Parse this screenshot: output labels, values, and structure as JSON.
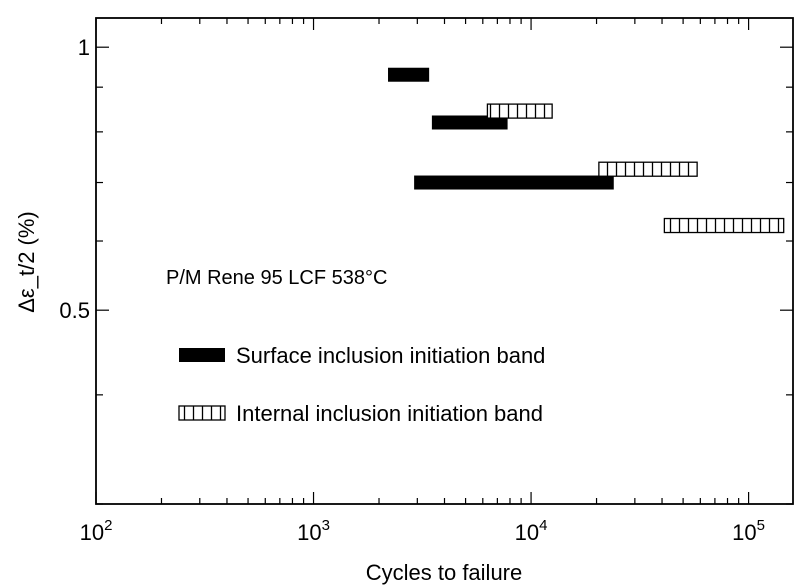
{
  "chart_data": {
    "type": "bar",
    "title": "",
    "xlabel": "Cycles to failure",
    "ylabel": "Δε_t/2 (%)",
    "x_scale": "log",
    "y_scale": "log",
    "xlim": [
      100,
      160000
    ],
    "ylim": [
      0.3,
      1.08
    ],
    "grid": false,
    "x_ticks": [
      {
        "value": 100,
        "base": "10",
        "exp": "2"
      },
      {
        "value": 1000,
        "base": "10",
        "exp": "3"
      },
      {
        "value": 10000,
        "base": "10",
        "exp": "4"
      },
      {
        "value": 100000,
        "base": "10",
        "exp": "5"
      }
    ],
    "y_ticks": [
      {
        "value": 1,
        "label": "1"
      },
      {
        "value": 0.5,
        "label": "0.5"
      }
    ],
    "annotation": {
      "text": "P/M Rene 95 LCF 538°C"
    },
    "legend_placement": "center-left",
    "series": [
      {
        "name": "Surface inclusion initiation band",
        "style": "solid",
        "color": "#000000",
        "bands": [
          {
            "y": 0.93,
            "x_start": 2200,
            "x_end": 3400
          },
          {
            "y": 0.82,
            "x_start": 3500,
            "x_end": 7800
          },
          {
            "y": 0.7,
            "x_start": 2900,
            "x_end": 24000
          }
        ]
      },
      {
        "name": "Internal inclusion initiation band",
        "style": "hatched",
        "color": "#000000",
        "bands": [
          {
            "y": 0.845,
            "x_start": 6300,
            "x_end": 12500
          },
          {
            "y": 0.725,
            "x_start": 20500,
            "x_end": 58000
          },
          {
            "y": 0.625,
            "x_start": 41000,
            "x_end": 145000
          }
        ]
      }
    ]
  }
}
